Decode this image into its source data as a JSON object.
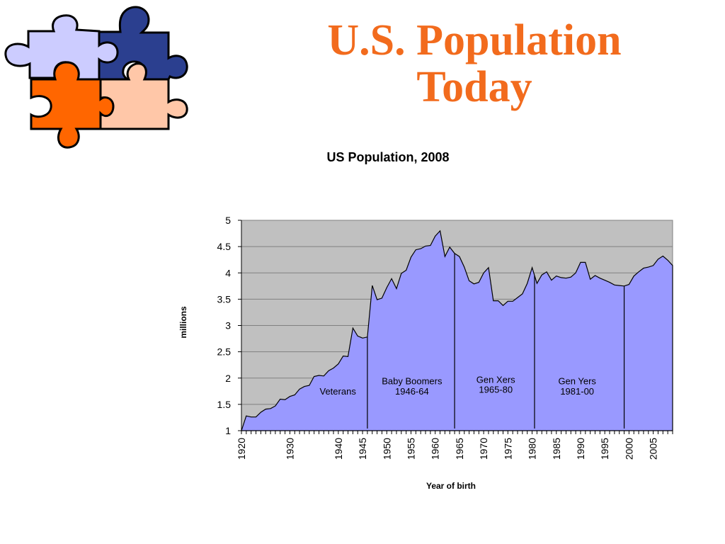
{
  "slide": {
    "title_line1": "U.S. Population",
    "title_line2": "Today"
  },
  "colors": {
    "title": "#f26b1d",
    "plot_background": "#c0c0c0",
    "area_fill": "#9999ff",
    "puzzle_lavender": "#ccccff",
    "puzzle_navy": "#2b3f8f",
    "puzzle_orange": "#ff6600",
    "puzzle_peach": "#ffc7a8"
  },
  "decoration": {
    "name": "puzzle-pieces-icon"
  },
  "chart_data": {
    "type": "area",
    "title": "US Population, 2008",
    "xlabel": "Year of birth",
    "ylabel": "millions",
    "xlim": [
      1920,
      2009
    ],
    "ylim": [
      1,
      5
    ],
    "yticks": [
      "1",
      "1.5",
      "2",
      "2.5",
      "3",
      "3.5",
      "4",
      "4.5",
      "5"
    ],
    "xticks": [
      "1920",
      "1930",
      "1940",
      "1945",
      "1950",
      "1955",
      "1960",
      "1965",
      "1970",
      "1975",
      "1980",
      "1985",
      "1990",
      "1995",
      "2000",
      "2005"
    ],
    "grid": true,
    "legend": "none",
    "series": [
      {
        "x": [
          1920,
          1921,
          1922,
          1923,
          1924,
          1925,
          1926,
          1927,
          1928,
          1929,
          1930,
          1931,
          1932,
          1933,
          1934,
          1935,
          1936,
          1937,
          1938,
          1939,
          1940,
          1941,
          1942,
          1943,
          1944,
          1945,
          1946,
          1947,
          1948,
          1949,
          1950,
          1951,
          1952,
          1953,
          1954,
          1955,
          1956,
          1957,
          1958,
          1959,
          1960,
          1961,
          1962,
          1963,
          1964,
          1965,
          1966,
          1967,
          1968,
          1969,
          1970,
          1971,
          1972,
          1973,
          1974,
          1975,
          1976,
          1977,
          1978,
          1979,
          1980,
          1981,
          1982,
          1983,
          1984,
          1985,
          1986,
          1987,
          1988,
          1989,
          1990,
          1991,
          1992,
          1993,
          1994,
          1995,
          1996,
          1997,
          1998,
          1999,
          2000,
          2001,
          2002,
          2003,
          2004,
          2005,
          2006,
          2007,
          2008,
          2009
        ],
        "values": [
          1.0,
          1.28,
          1.26,
          1.26,
          1.35,
          1.41,
          1.42,
          1.47,
          1.6,
          1.59,
          1.65,
          1.68,
          1.79,
          1.84,
          1.86,
          2.03,
          2.05,
          2.04,
          2.14,
          2.19,
          2.27,
          2.42,
          2.41,
          2.95,
          2.8,
          2.76,
          2.78,
          3.76,
          3.49,
          3.52,
          3.72,
          3.89,
          3.7,
          3.99,
          4.05,
          4.3,
          4.44,
          4.46,
          4.51,
          4.52,
          4.7,
          4.8,
          4.31,
          4.49,
          4.37,
          4.31,
          4.11,
          3.85,
          3.79,
          3.82,
          4.0,
          4.1,
          3.47,
          3.47,
          3.38,
          3.46,
          3.46,
          3.53,
          3.6,
          3.8,
          4.1,
          3.8,
          3.96,
          4.02,
          3.86,
          3.94,
          3.91,
          3.9,
          3.92,
          4.0,
          4.2,
          4.2,
          3.88,
          3.95,
          3.9,
          3.86,
          3.82,
          3.77,
          3.76,
          3.75,
          3.78,
          3.94,
          4.02,
          4.09,
          4.11,
          4.14,
          4.26,
          4.32,
          4.24,
          4.14
        ]
      }
    ],
    "dividers": [
      1946,
      1964,
      1980.5,
      1999
    ],
    "annotations": [
      {
        "text": "Veterans",
        "x": 1939.9,
        "y": 1.69
      },
      {
        "text": "Baby Boomers",
        "x": 1955.2,
        "y": 1.88
      },
      {
        "text": "1946-64",
        "x": 1955.2,
        "y": 1.69
      },
      {
        "text": "Gen Xers",
        "x": 1972.5,
        "y": 1.91
      },
      {
        "text": "1965-80",
        "x": 1972.5,
        "y": 1.72
      },
      {
        "text": "Gen Yers",
        "x": 1989.3,
        "y": 1.88
      },
      {
        "text": "1981-00",
        "x": 1989.3,
        "y": 1.69
      }
    ]
  }
}
